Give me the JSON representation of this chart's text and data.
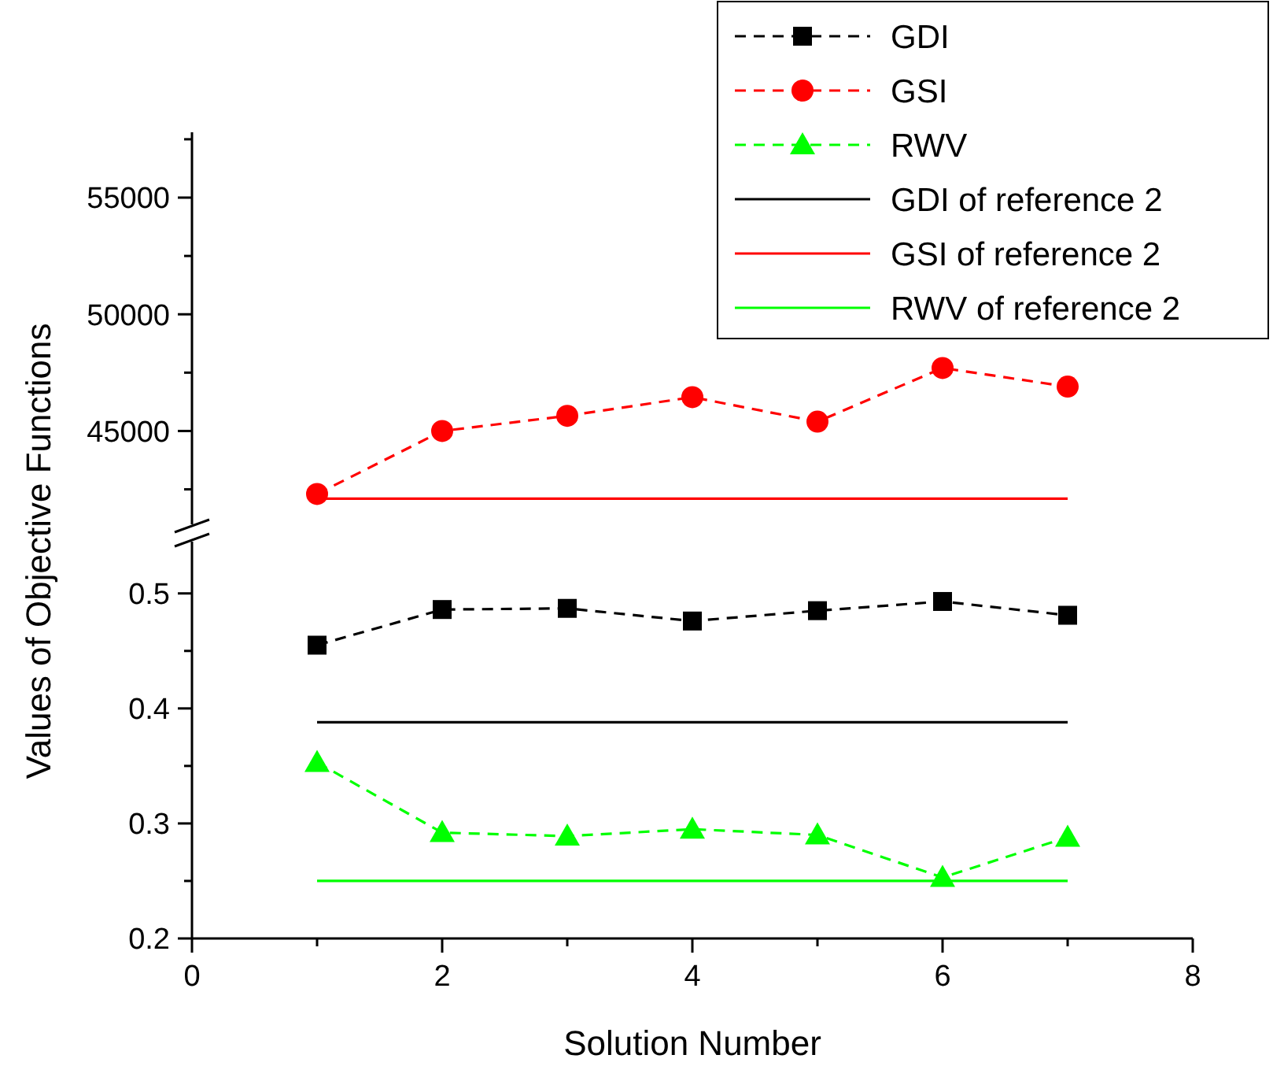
{
  "chart_data": [
    {
      "type": "line",
      "ylabel": "Values of Objective Functions",
      "legend": "top right",
      "tick_labels": "y",
      "xlim": [
        0,
        8
      ],
      "ylim": [
        41000,
        57800
      ],
      "yticks": [
        {
          "value": 42500,
          "label": null
        },
        45000,
        {
          "value": 47500,
          "label": null
        },
        50000,
        {
          "value": 52500,
          "label": null
        },
        55000,
        {
          "value": 57500,
          "label": null
        }
      ],
      "x": [
        1,
        2,
        3,
        4,
        5,
        6,
        7
      ],
      "series": [
        {
          "name": "GSI",
          "color": "#ff0000",
          "marker": "circle",
          "line_style": "dashed",
          "values": [
            42300,
            45000,
            45650,
            46450,
            45400,
            47700,
            46900
          ]
        },
        {
          "name": "GSI of reference 2",
          "color": "#ff0000",
          "marker": "none",
          "line_style": "solid",
          "values": [
            42100,
            42100,
            42100,
            42100,
            42100,
            42100,
            42100
          ]
        }
      ]
    },
    {
      "type": "line",
      "xlabel": "Solution Number",
      "legend": "top right",
      "xlim": [
        0,
        8
      ],
      "xticks": [
        0,
        {
          "value": 1,
          "label": null
        },
        2,
        {
          "value": 3,
          "label": null
        },
        4,
        {
          "value": 5,
          "label": null
        },
        6,
        {
          "value": 7,
          "label": null
        },
        8
      ],
      "ylim": [
        0.2,
        0.545
      ],
      "yticks": [
        0.2,
        {
          "value": 0.25,
          "label": null
        },
        0.3,
        {
          "value": 0.35,
          "label": null
        },
        0.4,
        {
          "value": 0.45,
          "label": null
        },
        0.5
      ],
      "x": [
        1,
        2,
        3,
        4,
        5,
        6,
        7
      ],
      "series": [
        {
          "name": "GDI",
          "color": "#000000",
          "marker": "square",
          "line_style": "dashed",
          "values": [
            0.455,
            0.486,
            0.487,
            0.476,
            0.485,
            0.493,
            0.481
          ]
        },
        {
          "name": "RWV",
          "color": "#00ff00",
          "marker": "triangle",
          "line_style": "dashed",
          "values": [
            0.353,
            0.292,
            0.289,
            0.295,
            0.29,
            0.253,
            0.288
          ]
        },
        {
          "name": "GDI of reference 2",
          "color": "#000000",
          "marker": "none",
          "line_style": "solid",
          "values": [
            0.388,
            0.388,
            0.388,
            0.388,
            0.388,
            0.388,
            0.388
          ]
        },
        {
          "name": "RWV of reference 2",
          "color": "#00ff00",
          "marker": "none",
          "line_style": "solid",
          "values": [
            0.25,
            0.25,
            0.25,
            0.25,
            0.25,
            0.25,
            0.25
          ]
        }
      ]
    }
  ]
}
